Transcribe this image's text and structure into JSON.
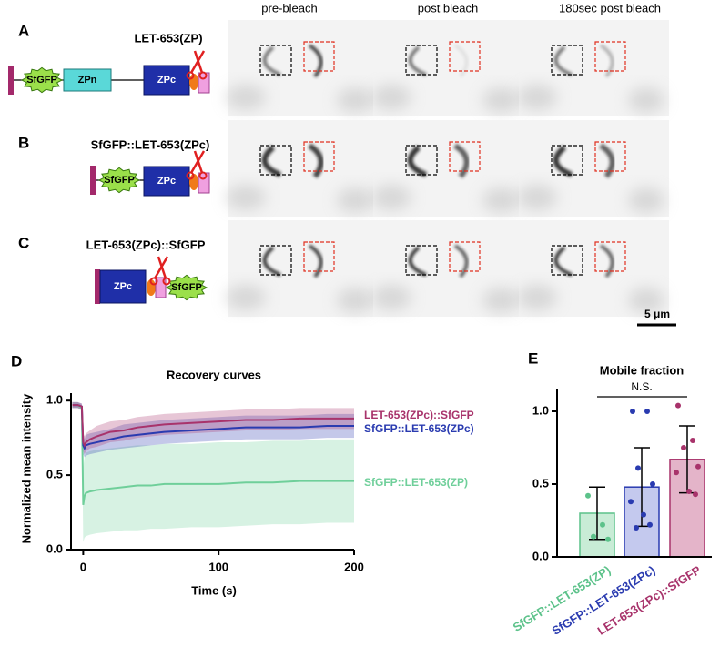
{
  "panel_labels": [
    "A",
    "B",
    "C",
    "D",
    "E"
  ],
  "column_headers": [
    "pre-bleach",
    "post bleach",
    "180sec post bleach"
  ],
  "constructs": [
    {
      "name": "LET-653(ZP)",
      "domains": [
        "SfGFP",
        "ZPn",
        "ZPc"
      ]
    },
    {
      "name": "SfGFP::LET-653(ZPc)",
      "domains": [
        "SfGFP",
        "ZPc"
      ]
    },
    {
      "name": "LET-653(ZPc)::SfGFP",
      "domains": [
        "ZPc",
        "SfGFP"
      ]
    }
  ],
  "scale_bar": "5 μm",
  "chart_data": [
    {
      "type": "line",
      "title": "Recovery curves",
      "x_label": "Time (s)",
      "y_label": "Normalized mean intensity",
      "x": [
        -8,
        -4,
        -1,
        0,
        1,
        2,
        5,
        10,
        20,
        30,
        40,
        50,
        60,
        80,
        100,
        120,
        140,
        160,
        180,
        200
      ],
      "xlim": [
        -9,
        200
      ],
      "xticks": [
        0,
        100,
        200
      ],
      "ylim": [
        0,
        1.05
      ],
      "yticks": [
        {
          "value": 0,
          "label": "0.0"
        },
        0.5,
        {
          "value": 1,
          "label": "1.0"
        }
      ],
      "series": [
        {
          "name": "SfGFP::LET-653(ZP)",
          "color": "#6fcf9a",
          "values": [
            0.97,
            0.97,
            0.95,
            0.3,
            0.36,
            0.38,
            0.39,
            0.4,
            0.41,
            0.42,
            0.43,
            0.43,
            0.44,
            0.44,
            0.44,
            0.45,
            0.45,
            0.46,
            0.46,
            0.46
          ],
          "lower": [
            0.95,
            0.95,
            0.93,
            0.05,
            0.08,
            0.09,
            0.1,
            0.11,
            0.12,
            0.13,
            0.13,
            0.14,
            0.14,
            0.15,
            0.15,
            0.16,
            0.17,
            0.17,
            0.18,
            0.18
          ],
          "upper": [
            0.99,
            0.99,
            0.97,
            0.55,
            0.62,
            0.65,
            0.66,
            0.67,
            0.68,
            0.69,
            0.7,
            0.7,
            0.71,
            0.71,
            0.72,
            0.72,
            0.73,
            0.73,
            0.74,
            0.74
          ]
        },
        {
          "name": "SfGFP::LET-653(ZPc)",
          "color": "#2a3bb0",
          "values": [
            0.97,
            0.97,
            0.96,
            0.7,
            0.68,
            0.7,
            0.71,
            0.72,
            0.74,
            0.76,
            0.77,
            0.78,
            0.79,
            0.8,
            0.81,
            0.82,
            0.82,
            0.82,
            0.83,
            0.83
          ],
          "lower": [
            0.95,
            0.95,
            0.94,
            0.64,
            0.62,
            0.63,
            0.64,
            0.65,
            0.67,
            0.68,
            0.69,
            0.7,
            0.71,
            0.72,
            0.73,
            0.74,
            0.74,
            0.74,
            0.75,
            0.75
          ],
          "upper": [
            0.99,
            0.99,
            0.98,
            0.76,
            0.74,
            0.77,
            0.78,
            0.79,
            0.81,
            0.84,
            0.85,
            0.86,
            0.87,
            0.88,
            0.89,
            0.9,
            0.9,
            0.9,
            0.91,
            0.91
          ]
        },
        {
          "name": "LET-653(ZPc)::SfGFP",
          "color": "#a8336b",
          "values": [
            0.97,
            0.97,
            0.96,
            0.72,
            0.7,
            0.72,
            0.74,
            0.76,
            0.79,
            0.8,
            0.82,
            0.83,
            0.84,
            0.85,
            0.86,
            0.87,
            0.87,
            0.88,
            0.88,
            0.88
          ],
          "lower": [
            0.95,
            0.95,
            0.94,
            0.66,
            0.64,
            0.66,
            0.68,
            0.69,
            0.72,
            0.73,
            0.75,
            0.76,
            0.77,
            0.78,
            0.79,
            0.8,
            0.8,
            0.81,
            0.81,
            0.81
          ],
          "upper": [
            0.99,
            0.99,
            0.98,
            0.78,
            0.76,
            0.78,
            0.8,
            0.83,
            0.86,
            0.87,
            0.89,
            0.9,
            0.91,
            0.92,
            0.93,
            0.94,
            0.94,
            0.95,
            0.95,
            0.95
          ]
        }
      ]
    },
    {
      "type": "bar",
      "title": "Mobile fraction",
      "annotation": "N.S.",
      "categories": [
        "SfGFP::LET-653(ZP)",
        "SfGFP::LET-653(ZPc)",
        "LET-653(ZPc)::SfGFP"
      ],
      "values": [
        0.3,
        0.48,
        0.67
      ],
      "errors": [
        0.18,
        0.27,
        0.23
      ],
      "colors": [
        "#5cc28a",
        "#2a3bb0",
        "#a8336b"
      ],
      "points": [
        [
          0.42,
          0.22,
          0.14,
          0.12
        ],
        [
          1.0,
          1.0,
          0.61,
          0.5,
          0.38,
          0.29,
          0.22,
          0.2
        ],
        [
          1.04,
          0.8,
          0.75,
          0.62,
          0.58,
          0.45,
          0.43
        ]
      ],
      "ylim": [
        0,
        1.15
      ],
      "yticks": [
        {
          "value": 0,
          "label": "0.0"
        },
        0.5,
        {
          "value": 1,
          "label": "1.0"
        }
      ]
    }
  ]
}
